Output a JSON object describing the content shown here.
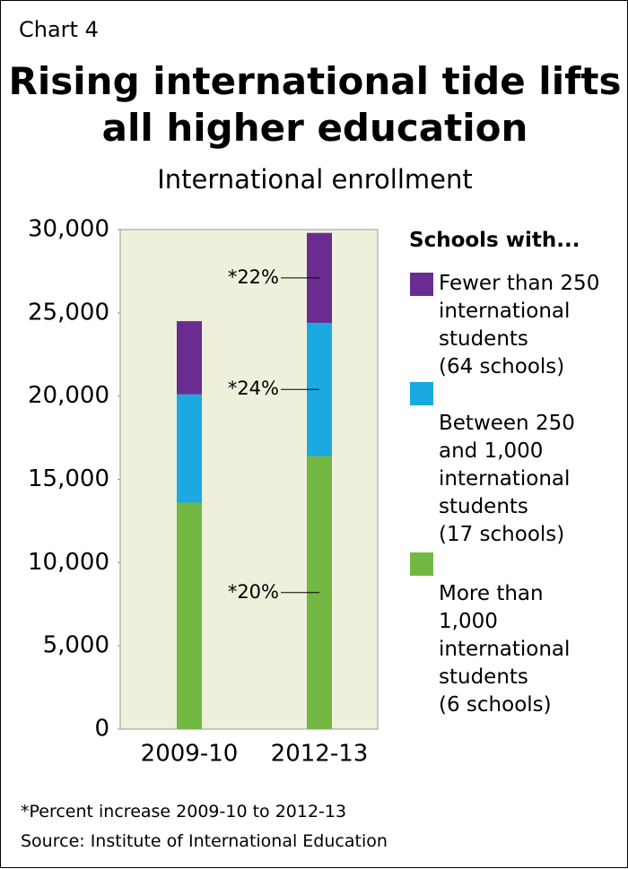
{
  "label": "Chart 4",
  "chart_data": {
    "type": "stacked_bar",
    "title": "Rising international tide lifts all higher education",
    "subtitle": "International enrollment",
    "legend_title": "Schools with...",
    "categories": [
      "2009-10",
      "2012-13"
    ],
    "series": [
      {
        "name": "More than\n1,000\ninternational\nstudents\n(6 schools)",
        "color": "#72b843",
        "values": [
          13600,
          16400
        ],
        "annotation": "*20%"
      },
      {
        "name": "Between 250\nand 1,000\ninternational\nstudents\n(17 schools)",
        "color": "#1ba9e1",
        "values": [
          6500,
          8000
        ],
        "annotation": "*24%"
      },
      {
        "name": "Fewer than 250\ninternational\nstudents\n(64 schools)",
        "color": "#6a2c91",
        "values": [
          4400,
          5400
        ],
        "annotation": "*22%"
      }
    ],
    "ylim": [
      0,
      30000
    ],
    "yticks": [
      0,
      {
        "value": 5000,
        "label": "5,000"
      },
      {
        "value": 10000,
        "label": "10,000"
      },
      {
        "value": 15000,
        "label": "15,000"
      },
      {
        "value": 20000,
        "label": "20,000"
      },
      {
        "value": 25000,
        "label": "25,000"
      },
      {
        "value": 30000,
        "label": "30,000"
      }
    ],
    "footnote": "*Percent increase 2009-10 to 2012-13",
    "source": "Source: Institute of International Education"
  }
}
